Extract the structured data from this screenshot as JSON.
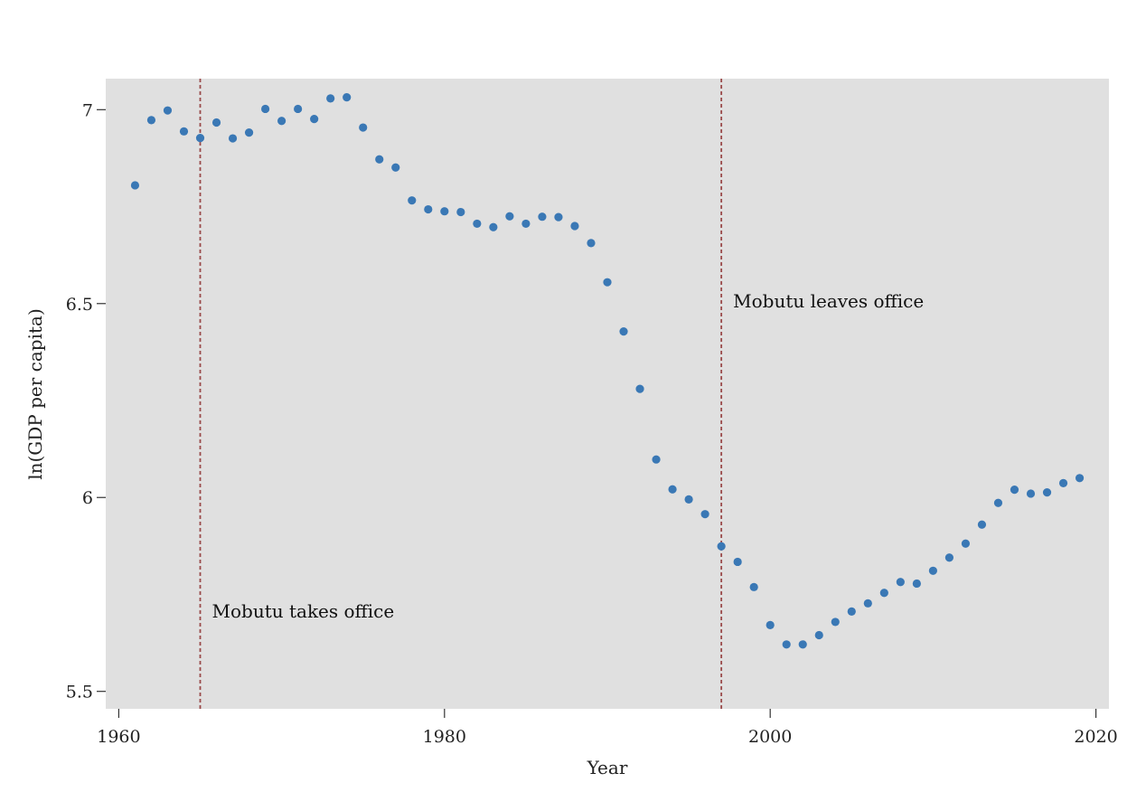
{
  "chart_data": {
    "type": "scatter",
    "xlabel": "Year",
    "ylabel": "ln(GDP per capita)",
    "xlim": [
      1959.2,
      2020.8
    ],
    "ylim": [
      5.455,
      7.08
    ],
    "x_ticks": [
      1960,
      1980,
      2000,
      2020
    ],
    "y_ticks": [
      5.5,
      6,
      6.5,
      7
    ],
    "x_tick_labels": [
      "1960",
      "1980",
      "2000",
      "2020"
    ],
    "y_tick_labels": [
      "5.5",
      "6",
      "6.5",
      "7"
    ],
    "grid": false,
    "point_color": "#3a78b5",
    "panel_color": "#e0e0e0",
    "vline_color": "#9a4a4a",
    "series": [
      {
        "x": [
          1961,
          1962,
          1963,
          1964,
          1965,
          1966,
          1967,
          1968,
          1969,
          1970,
          1971,
          1972,
          1973,
          1974,
          1975,
          1976,
          1977,
          1978,
          1979,
          1980,
          1981,
          1982,
          1983,
          1984,
          1985,
          1986,
          1987,
          1988,
          1989,
          1990,
          1991,
          1992,
          1993,
          1994,
          1995,
          1996,
          1997,
          1998,
          1999,
          2000,
          2001,
          2002,
          2003,
          2004,
          2005,
          2006,
          2007,
          2008,
          2009,
          2010,
          2011,
          2012,
          2013,
          2014,
          2015,
          2016,
          2017,
          2018,
          2019
        ],
        "y": [
          6.805,
          6.973,
          6.998,
          6.944,
          6.927,
          6.967,
          6.926,
          6.941,
          7.002,
          6.971,
          7.002,
          6.976,
          7.029,
          7.032,
          6.954,
          6.872,
          6.851,
          6.766,
          6.743,
          6.738,
          6.736,
          6.706,
          6.697,
          6.725,
          6.706,
          6.724,
          6.723,
          6.7,
          6.656,
          6.555,
          6.428,
          6.28,
          6.098,
          6.021,
          5.995,
          5.957,
          5.874,
          5.834,
          5.769,
          5.671,
          5.621,
          5.621,
          5.645,
          5.679,
          5.706,
          5.727,
          5.754,
          5.782,
          5.778,
          5.811,
          5.845,
          5.881,
          5.93,
          5.986,
          6.02,
          6.01,
          6.013,
          6.037,
          6.05
        ]
      }
    ],
    "vlines": [
      {
        "x": 1965,
        "label": "Mobutu takes office",
        "label_y": 5.69
      },
      {
        "x": 1997,
        "label": "Mobutu leaves office",
        "label_y": 6.49
      }
    ]
  }
}
